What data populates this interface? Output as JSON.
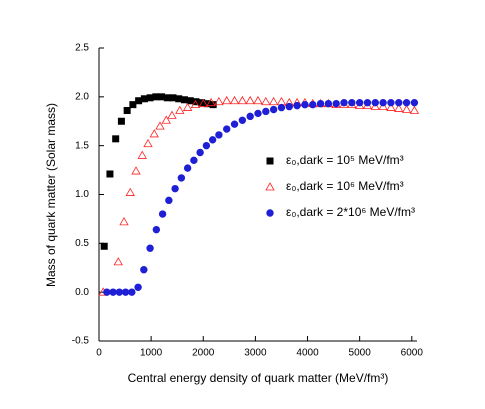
{
  "chart_data": {
    "type": "scatter",
    "xlabel": "Central energy density of quark matter (MeV/fm³)",
    "ylabel": "Mass of quark matter (Solar mass)",
    "xlim": [
      0,
      6100
    ],
    "xticks": [
      0,
      1000,
      2000,
      3000,
      4000,
      5000,
      6000
    ],
    "ylim": [
      -0.5,
      2.5
    ],
    "yticks": [
      -0.5,
      0.0,
      0.5,
      1.0,
      1.5,
      2.0,
      2.5
    ],
    "legend": "right",
    "series": [
      {
        "name": "ε₀,dark = 10⁵ MeV/fm³",
        "color": "#000000",
        "marker": "square",
        "filled": true,
        "x": [
          100,
          210,
          320,
          430,
          540,
          650,
          760,
          870,
          980,
          1090,
          1200,
          1310,
          1420,
          1530,
          1640,
          1750,
          1860,
          1970,
          2080,
          2190
        ],
        "values": [
          0.47,
          1.21,
          1.57,
          1.75,
          1.86,
          1.92,
          1.96,
          1.98,
          1.99,
          2.0,
          2.0,
          1.99,
          1.99,
          1.98,
          1.97,
          1.96,
          1.95,
          1.94,
          1.93,
          1.92
        ]
      },
      {
        "name": "ε₀,dark = 10⁶ MeV/fm³",
        "color": "#ff2020",
        "marker": "triangle",
        "filled": false,
        "x": [
          80,
          370,
          480,
          600,
          710,
          830,
          940,
          1060,
          1170,
          1290,
          1400,
          1550,
          1700,
          1850,
          2000,
          2150,
          2300,
          2450,
          2600,
          2750,
          2900,
          3050,
          3200,
          3350,
          3500,
          3650,
          3800,
          3950,
          4100,
          4250,
          4400,
          4550,
          4700,
          4850,
          5000,
          5150,
          5300,
          5450,
          5600,
          5750,
          5900,
          6050
        ],
        "values": [
          0,
          0.31,
          0.72,
          1.02,
          1.24,
          1.4,
          1.52,
          1.62,
          1.7,
          1.76,
          1.81,
          1.86,
          1.89,
          1.92,
          1.93,
          1.94,
          1.95,
          1.96,
          1.96,
          1.96,
          1.96,
          1.96,
          1.95,
          1.95,
          1.95,
          1.94,
          1.94,
          1.94,
          1.93,
          1.93,
          1.93,
          1.92,
          1.92,
          1.92,
          1.91,
          1.91,
          1.9,
          1.9,
          1.89,
          1.88,
          1.87,
          1.86
        ]
      },
      {
        "name": "ε₀,dark = 2*10⁶ MeV/fm³",
        "color": "#1f1fd6",
        "marker": "circle",
        "filled": true,
        "x": [
          150,
          270,
          390,
          510,
          630,
          750,
          860,
          980,
          1100,
          1220,
          1340,
          1460,
          1580,
          1700,
          1820,
          1940,
          2060,
          2180,
          2300,
          2450,
          2600,
          2750,
          2900,
          3050,
          3200,
          3350,
          3500,
          3650,
          3800,
          3950,
          4100,
          4250,
          4400,
          4550,
          4700,
          4850,
          5000,
          5150,
          5300,
          5450,
          5600,
          5750,
          5900,
          6050
        ],
        "values": [
          0,
          0,
          0,
          0,
          0,
          0.05,
          0.23,
          0.45,
          0.64,
          0.8,
          0.94,
          1.06,
          1.17,
          1.27,
          1.35,
          1.43,
          1.5,
          1.56,
          1.61,
          1.67,
          1.72,
          1.76,
          1.8,
          1.83,
          1.85,
          1.87,
          1.89,
          1.9,
          1.91,
          1.92,
          1.92,
          1.93,
          1.93,
          1.93,
          1.94,
          1.94,
          1.94,
          1.94,
          1.94,
          1.94,
          1.94,
          1.94,
          1.94,
          1.94
        ]
      }
    ]
  }
}
